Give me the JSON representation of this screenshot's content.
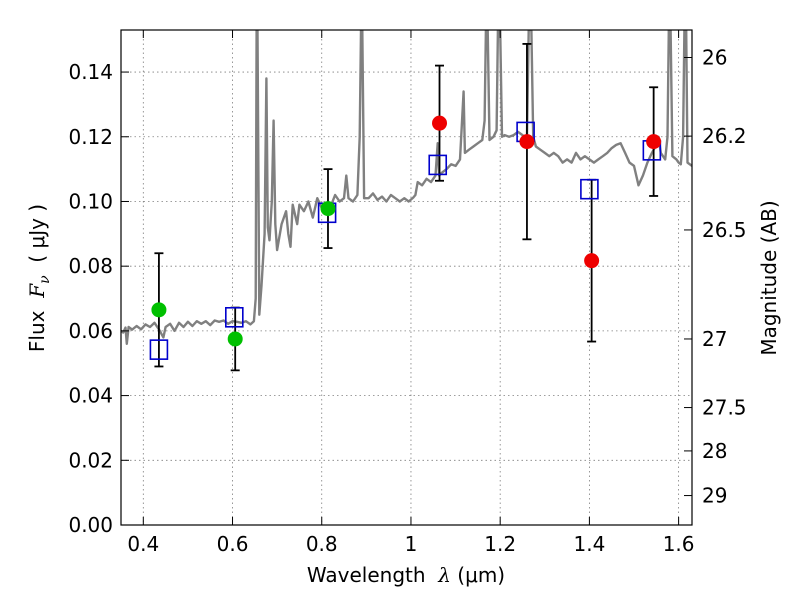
{
  "chart_data": {
    "type": "scatter",
    "title": "",
    "xlabel": {
      "prefix": "Wavelength  ",
      "symbol": "λ",
      "unit": " (μm)"
    },
    "ylabel": {
      "prefix": "Flux  ",
      "symbol": "F",
      "subscript": "ν",
      "unit": "  ( μJy )"
    },
    "y2label": "Magnitude (AB)",
    "xlim": [
      0.35,
      1.63
    ],
    "ylim": [
      0.0,
      0.153
    ],
    "grid": true,
    "x_ticks": [
      0.4,
      0.6,
      0.8,
      1.0,
      1.2,
      1.4,
      1.6
    ],
    "x_tick_labels": [
      "0.4",
      "0.6",
      "0.8",
      "1",
      "1.2",
      "1.4",
      "1.6"
    ],
    "y_ticks": [
      0.0,
      0.02,
      0.04,
      0.06,
      0.08,
      0.1,
      0.12,
      0.14
    ],
    "y_tick_labels": [
      "0.00",
      "0.02",
      "0.04",
      "0.06",
      "0.08",
      "0.10",
      "0.12",
      "0.14"
    ],
    "y2_ticks": [
      {
        "label": "26",
        "flux": 0.1445
      },
      {
        "label": "26.2",
        "flux": 0.1202
      },
      {
        "label": "26.5",
        "flux": 0.0912
      },
      {
        "label": "27",
        "flux": 0.0575
      },
      {
        "label": "27.5",
        "flux": 0.0363
      },
      {
        "label": "28",
        "flux": 0.0229
      },
      {
        "label": "29",
        "flux": 0.0091
      }
    ],
    "colors": {
      "spectrum": "#808080",
      "green_points": "#00c000",
      "red_points": "#ee0000",
      "model_squares": "#0000cc",
      "errorbars": "#000000",
      "grid": "#7f7f7f"
    },
    "series": [
      {
        "marker": "circle",
        "color": "#00c000",
        "points": [
          {
            "x": 0.435,
            "y": 0.0665,
            "err": 0.0175
          },
          {
            "x": 0.606,
            "y": 0.0575,
            "err": 0.0097
          },
          {
            "x": 0.814,
            "y": 0.0978,
            "err": 0.0122
          }
        ]
      },
      {
        "marker": "circle",
        "color": "#ee0000",
        "points": [
          {
            "x": 1.064,
            "y": 0.1242,
            "err": 0.0178
          },
          {
            "x": 1.26,
            "y": 0.1185,
            "err": 0.0302
          },
          {
            "x": 1.405,
            "y": 0.0817,
            "err": 0.025
          },
          {
            "x": 1.544,
            "y": 0.1185,
            "err": 0.0168
          }
        ]
      },
      {
        "marker": "square",
        "color": "#0000cc",
        "points": [
          {
            "x": 0.435,
            "y": 0.0542
          },
          {
            "x": 0.604,
            "y": 0.0642
          },
          {
            "x": 0.812,
            "y": 0.0965
          },
          {
            "x": 1.06,
            "y": 0.1113
          },
          {
            "x": 1.257,
            "y": 0.1215
          },
          {
            "x": 1.4,
            "y": 0.1038
          },
          {
            "x": 1.54,
            "y": 0.1158
          }
        ]
      },
      {
        "marker": "line",
        "color": "#808080",
        "points": [
          [
            0.35,
            0.06
          ],
          [
            0.355,
            0.0595
          ],
          [
            0.36,
            0.061
          ],
          [
            0.363,
            0.056
          ],
          [
            0.367,
            0.0612
          ],
          [
            0.375,
            0.0604
          ],
          [
            0.385,
            0.0615
          ],
          [
            0.395,
            0.0605
          ],
          [
            0.405,
            0.062
          ],
          [
            0.415,
            0.0612
          ],
          [
            0.425,
            0.0625
          ],
          [
            0.435,
            0.0605
          ],
          [
            0.445,
            0.058
          ],
          [
            0.45,
            0.0612
          ],
          [
            0.46,
            0.0622
          ],
          [
            0.47,
            0.06
          ],
          [
            0.48,
            0.0625
          ],
          [
            0.49,
            0.0612
          ],
          [
            0.5,
            0.0628
          ],
          [
            0.51,
            0.0615
          ],
          [
            0.52,
            0.063
          ],
          [
            0.53,
            0.0622
          ],
          [
            0.54,
            0.063
          ],
          [
            0.55,
            0.0618
          ],
          [
            0.56,
            0.0632
          ],
          [
            0.57,
            0.0628
          ],
          [
            0.58,
            0.0632
          ],
          [
            0.59,
            0.0622
          ],
          [
            0.6,
            0.063
          ],
          [
            0.61,
            0.0628
          ],
          [
            0.62,
            0.0625
          ],
          [
            0.63,
            0.063
          ],
          [
            0.64,
            0.062
          ],
          [
            0.648,
            0.063
          ],
          [
            0.652,
            0.07
          ],
          [
            0.654,
            0.153
          ],
          [
            0.656,
            0.153
          ],
          [
            0.66,
            0.065
          ],
          [
            0.665,
            0.074
          ],
          [
            0.672,
            0.09
          ],
          [
            0.676,
            0.138
          ],
          [
            0.679,
            0.092
          ],
          [
            0.683,
            0.088
          ],
          [
            0.688,
            0.1
          ],
          [
            0.692,
            0.125
          ],
          [
            0.696,
            0.093
          ],
          [
            0.7,
            0.085
          ],
          [
            0.71,
            0.093
          ],
          [
            0.72,
            0.097
          ],
          [
            0.725,
            0.09
          ],
          [
            0.73,
            0.086
          ],
          [
            0.735,
            0.099
          ],
          [
            0.745,
            0.093
          ],
          [
            0.75,
            0.099
          ],
          [
            0.76,
            0.097
          ],
          [
            0.77,
            0.1
          ],
          [
            0.78,
            0.095
          ],
          [
            0.79,
            0.101
          ],
          [
            0.8,
            0.098
          ],
          [
            0.81,
            0.099
          ],
          [
            0.82,
            0.0985
          ],
          [
            0.83,
            0.102
          ],
          [
            0.84,
            0.1
          ],
          [
            0.85,
            0.101
          ],
          [
            0.855,
            0.108
          ],
          [
            0.86,
            0.101
          ],
          [
            0.87,
            0.1
          ],
          [
            0.88,
            0.102
          ],
          [
            0.885,
            0.12
          ],
          [
            0.888,
            0.153
          ],
          [
            0.891,
            0.153
          ],
          [
            0.895,
            0.101
          ],
          [
            0.905,
            0.101
          ],
          [
            0.915,
            0.1025
          ],
          [
            0.925,
            0.1005
          ],
          [
            0.935,
            0.1015
          ],
          [
            0.945,
            0.1
          ],
          [
            0.955,
            0.102
          ],
          [
            0.965,
            0.101
          ],
          [
            0.975,
            0.1
          ],
          [
            0.985,
            0.101
          ],
          [
            0.995,
            0.1
          ],
          [
            1.005,
            0.1012
          ],
          [
            1.01,
            0.102
          ],
          [
            1.015,
            0.106
          ],
          [
            1.025,
            0.105
          ],
          [
            1.035,
            0.107
          ],
          [
            1.045,
            0.106
          ],
          [
            1.055,
            0.108
          ],
          [
            1.06,
            0.118
          ],
          [
            1.063,
            0.108
          ],
          [
            1.07,
            0.109
          ],
          [
            1.08,
            0.11
          ],
          [
            1.09,
            0.1115
          ],
          [
            1.1,
            0.111
          ],
          [
            1.11,
            0.113
          ],
          [
            1.118,
            0.134
          ],
          [
            1.121,
            0.115
          ],
          [
            1.13,
            0.116
          ],
          [
            1.14,
            0.117
          ],
          [
            1.15,
            0.118
          ],
          [
            1.16,
            0.119
          ],
          [
            1.165,
            0.125
          ],
          [
            1.168,
            0.153
          ],
          [
            1.172,
            0.153
          ],
          [
            1.176,
            0.119
          ],
          [
            1.185,
            0.12
          ],
          [
            1.192,
            0.122
          ],
          [
            1.195,
            0.153
          ],
          [
            1.2,
            0.153
          ],
          [
            1.204,
            0.12
          ],
          [
            1.21,
            0.1205
          ],
          [
            1.22,
            0.12
          ],
          [
            1.23,
            0.1205
          ],
          [
            1.24,
            0.1215
          ],
          [
            1.25,
            0.1205
          ],
          [
            1.26,
            0.119
          ],
          [
            1.264,
            0.153
          ],
          [
            1.27,
            0.153
          ],
          [
            1.274,
            0.12
          ],
          [
            1.28,
            0.117
          ],
          [
            1.29,
            0.116
          ],
          [
            1.3,
            0.115
          ],
          [
            1.31,
            0.114
          ],
          [
            1.32,
            0.115
          ],
          [
            1.33,
            0.114
          ],
          [
            1.34,
            0.112
          ],
          [
            1.35,
            0.113
          ],
          [
            1.36,
            0.112
          ],
          [
            1.37,
            0.115
          ],
          [
            1.38,
            0.113
          ],
          [
            1.39,
            0.114
          ],
          [
            1.4,
            0.113
          ],
          [
            1.41,
            0.112
          ],
          [
            1.42,
            0.113
          ],
          [
            1.43,
            0.114
          ],
          [
            1.44,
            0.115
          ],
          [
            1.45,
            0.1165
          ],
          [
            1.46,
            0.1175
          ],
          [
            1.47,
            0.118
          ],
          [
            1.48,
            0.115
          ],
          [
            1.49,
            0.112
          ],
          [
            1.5,
            0.111
          ],
          [
            1.51,
            0.105
          ],
          [
            1.52,
            0.108
          ],
          [
            1.53,
            0.112
          ],
          [
            1.54,
            0.115
          ],
          [
            1.55,
            0.1175
          ],
          [
            1.555,
            0.12
          ],
          [
            1.56,
            0.115
          ],
          [
            1.57,
            0.113
          ],
          [
            1.575,
            0.12
          ],
          [
            1.578,
            0.153
          ],
          [
            1.582,
            0.153
          ],
          [
            1.586,
            0.114
          ],
          [
            1.595,
            0.113
          ],
          [
            1.6,
            0.112
          ],
          [
            1.605,
            0.1115
          ],
          [
            1.61,
            0.12
          ],
          [
            1.613,
            0.153
          ],
          [
            1.617,
            0.153
          ],
          [
            1.62,
            0.112
          ],
          [
            1.63,
            0.111
          ]
        ]
      }
    ]
  }
}
